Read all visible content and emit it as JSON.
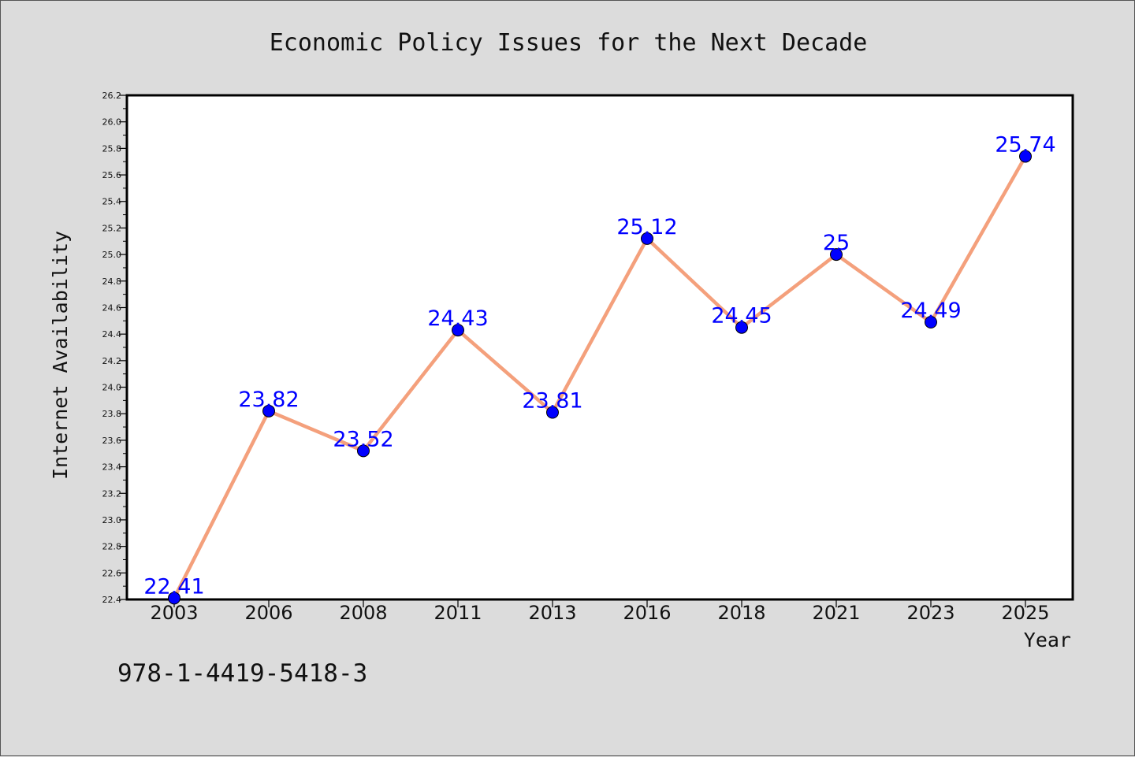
{
  "footer_text": "978-1-4419-5418-3",
  "chart_data": {
    "type": "line",
    "title": "Economic Policy Issues for the Next Decade",
    "xlabel": "Year",
    "ylabel": "Internet Availability",
    "categories": [
      "2003",
      "2006",
      "2008",
      "2011",
      "2013",
      "2016",
      "2018",
      "2021",
      "2023",
      "2025"
    ],
    "values": [
      22.41,
      23.82,
      23.52,
      24.43,
      23.81,
      25.12,
      24.45,
      25,
      24.49,
      25.74
    ],
    "data_labels": [
      "22.41",
      "23.82",
      "23.52",
      "24.43",
      "23.81",
      "25.12",
      "24.45",
      "25",
      "24.49",
      "25.74"
    ],
    "ylim": [
      22.4,
      26.2
    ],
    "y_ticks": [
      "22.4",
      "22.6",
      "22.8",
      "23.0",
      "23.2",
      "23.4",
      "23.6",
      "23.8",
      "24.0",
      "24.2",
      "24.4",
      "24.6",
      "24.8",
      "25.0",
      "25.2",
      "25.4",
      "25.6",
      "25.8",
      "26.0",
      "26.2"
    ],
    "grid": false,
    "legend": "none",
    "colors": {
      "line": "#f4a07c",
      "marker": "#0000ff",
      "data_label": "#0000ff",
      "plot_background": "#ffffff",
      "page_background": "#dcdcdc"
    }
  }
}
